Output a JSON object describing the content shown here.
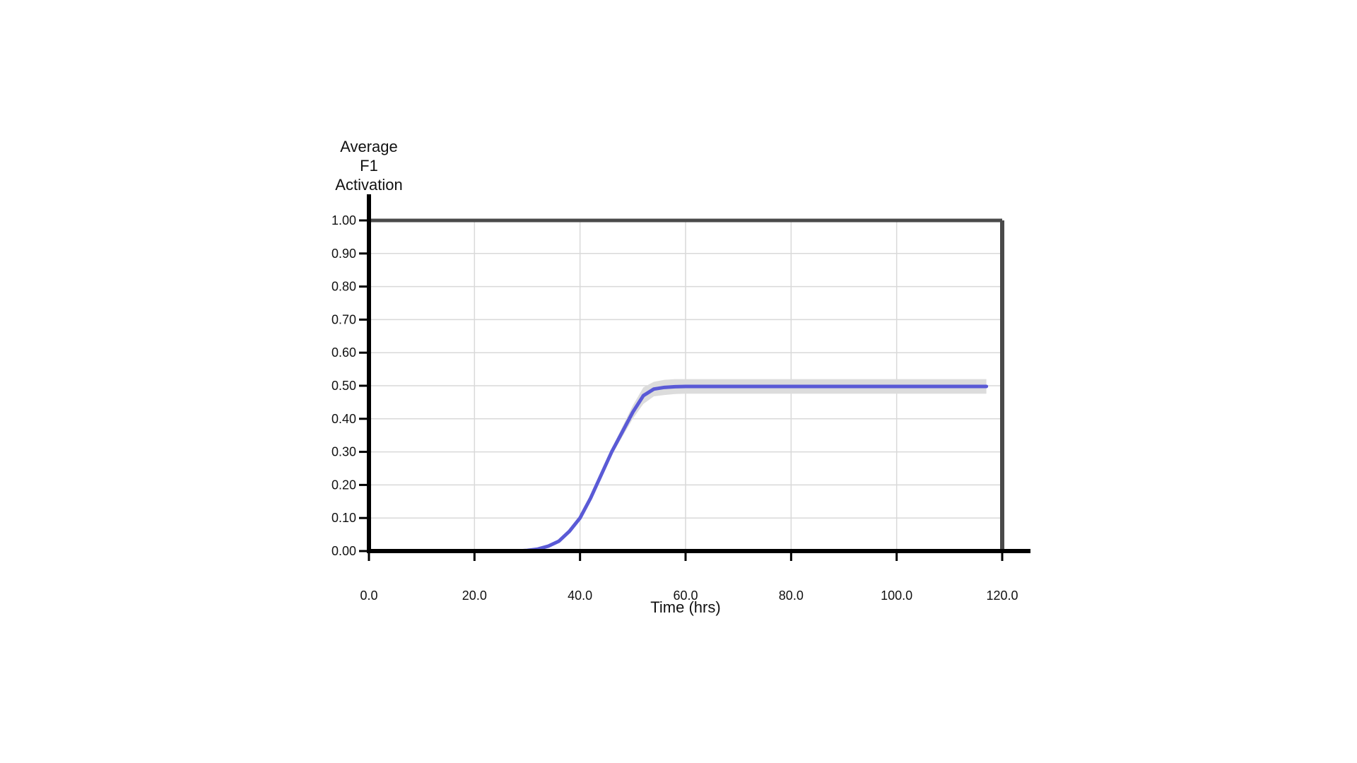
{
  "chart_data": {
    "type": "line",
    "title": "",
    "ylabel_lines": [
      "Average",
      "F1",
      "Activation"
    ],
    "xlabel": "Time (hrs)",
    "xlim": [
      0,
      120
    ],
    "ylim": [
      0,
      1
    ],
    "grid": true,
    "x_ticks": [
      0,
      20,
      40,
      60,
      80,
      100,
      120
    ],
    "x_tick_labels": [
      "0.0",
      "20.0",
      "40.0",
      "60.0",
      "80.0",
      "100.0",
      "120.0"
    ],
    "y_ticks": [
      0,
      0.1,
      0.2,
      0.3,
      0.4,
      0.5,
      0.6,
      0.7,
      0.8,
      0.9,
      1.0
    ],
    "y_tick_labels": [
      "0.00",
      "0.10",
      "0.20",
      "0.30",
      "0.40",
      "0.50",
      "0.60",
      "0.70",
      "0.80",
      "0.90",
      "1.00"
    ],
    "colors": {
      "series": "#5a5ad6",
      "band": "#dcdcdc",
      "reference": "#4a4a4a",
      "grid": "#d9d9d9",
      "axis": "#000000"
    },
    "series": [
      {
        "x": [
          0,
          10,
          20,
          28,
          30,
          32,
          34,
          36,
          38,
          40,
          42,
          44,
          46,
          48,
          50,
          52,
          54,
          56,
          58,
          60,
          70,
          80,
          90,
          100,
          110,
          117
        ],
        "values": [
          0,
          0,
          0,
          0,
          0.002,
          0.006,
          0.015,
          0.03,
          0.06,
          0.1,
          0.16,
          0.23,
          0.3,
          0.36,
          0.42,
          0.47,
          0.49,
          0.495,
          0.497,
          0.498,
          0.498,
          0.498,
          0.498,
          0.498,
          0.498,
          0.498
        ],
        "band_upper": [
          0,
          0,
          0,
          0,
          0.003,
          0.008,
          0.018,
          0.035,
          0.066,
          0.108,
          0.17,
          0.24,
          0.31,
          0.375,
          0.44,
          0.495,
          0.512,
          0.518,
          0.52,
          0.52,
          0.52,
          0.52,
          0.52,
          0.52,
          0.52,
          0.52
        ],
        "band_lower": [
          0,
          0,
          0,
          0,
          0.001,
          0.004,
          0.012,
          0.025,
          0.054,
          0.092,
          0.15,
          0.22,
          0.29,
          0.345,
          0.4,
          0.445,
          0.468,
          0.472,
          0.475,
          0.476,
          0.476,
          0.476,
          0.476,
          0.476,
          0.476,
          0.476
        ]
      }
    ],
    "reference_line": {
      "y": 1.0,
      "x_end": 120
    }
  }
}
